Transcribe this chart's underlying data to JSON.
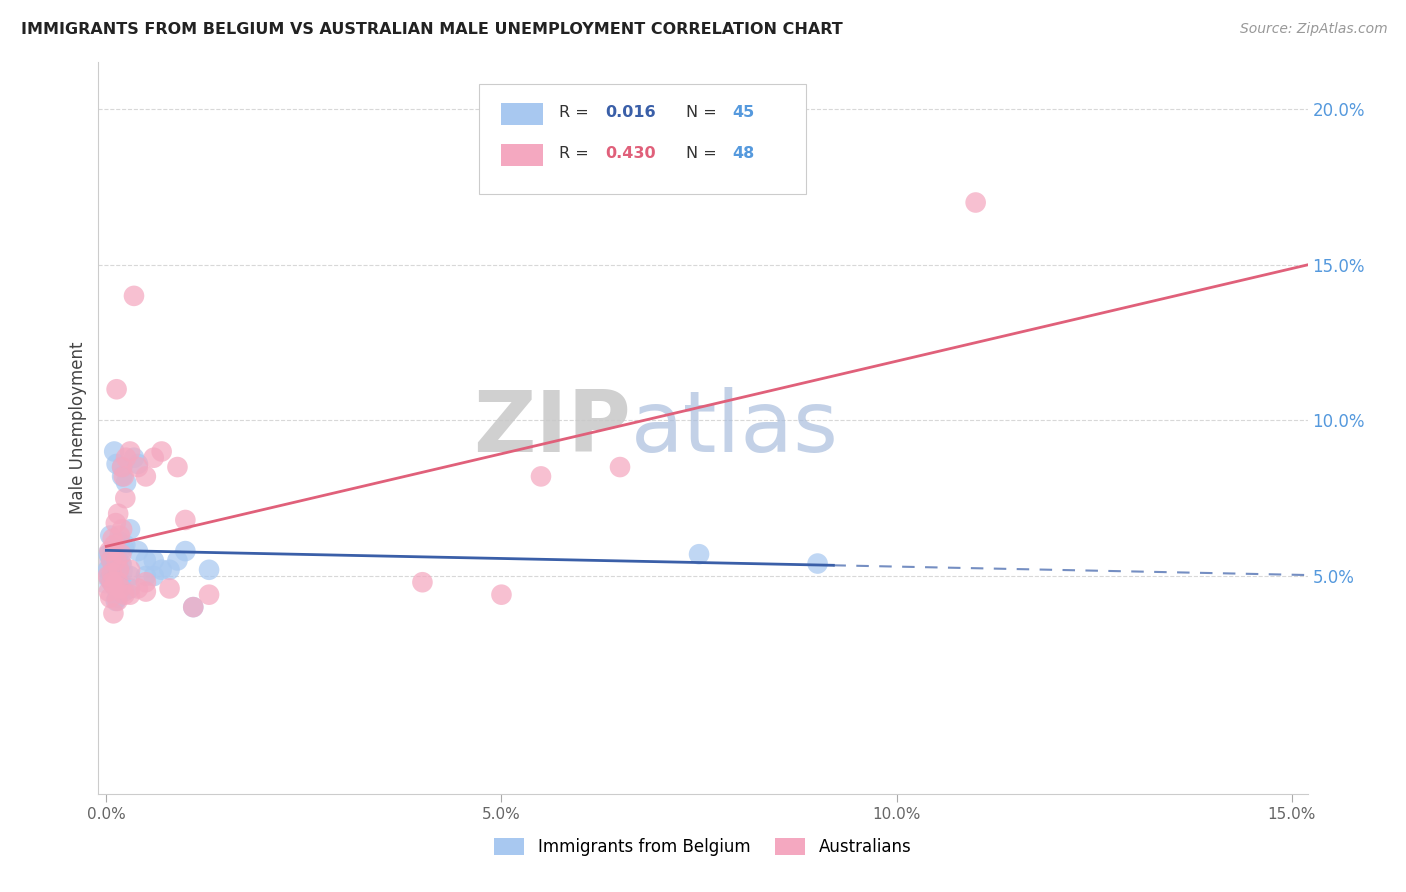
{
  "title": "IMMIGRANTS FROM BELGIUM VS AUSTRALIAN MALE UNEMPLOYMENT CORRELATION CHART",
  "source": "Source: ZipAtlas.com",
  "ylabel": "Male Unemployment",
  "watermark_zip": "ZIP",
  "watermark_atlas": "atlas",
  "xlim": [
    -0.001,
    0.152
  ],
  "ylim": [
    -0.02,
    0.215
  ],
  "xtick_vals": [
    0.0,
    0.05,
    0.1,
    0.15
  ],
  "xtick_labels": [
    "0.0%",
    "5.0%",
    "10.0%",
    "15.0%"
  ],
  "ytick_right_vals": [
    0.05,
    0.1,
    0.15,
    0.2
  ],
  "ytick_right_labels": [
    "5.0%",
    "10.0%",
    "15.0%",
    "20.0%"
  ],
  "series1_label": "Immigrants from Belgium",
  "series2_label": "Australians",
  "series1_color": "#a8c8f0",
  "series2_color": "#f4a8c0",
  "series1_R": "0.016",
  "series1_N": "45",
  "series2_R": "0.430",
  "series2_N": "48",
  "series1_line_color": "#3a5fa8",
  "series2_line_color": "#e0607a",
  "series1_dash_color": "#8899cc",
  "background_color": "#ffffff",
  "grid_color": "#d8d8d8",
  "s1_x": [
    0.0002,
    0.0003,
    0.0004,
    0.0005,
    0.0006,
    0.0007,
    0.0007,
    0.0008,
    0.0009,
    0.001,
    0.001,
    0.0012,
    0.0013,
    0.0013,
    0.0014,
    0.0015,
    0.0015,
    0.0016,
    0.0017,
    0.0018,
    0.0019,
    0.002,
    0.002,
    0.0022,
    0.0023,
    0.0024,
    0.0025,
    0.003,
    0.003,
    0.003,
    0.0035,
    0.004,
    0.004,
    0.005,
    0.005,
    0.006,
    0.006,
    0.007,
    0.008,
    0.009,
    0.01,
    0.011,
    0.013,
    0.075,
    0.09
  ],
  "s1_y": [
    0.052,
    0.057,
    0.049,
    0.063,
    0.055,
    0.05,
    0.048,
    0.058,
    0.053,
    0.047,
    0.09,
    0.042,
    0.058,
    0.086,
    0.043,
    0.05,
    0.055,
    0.052,
    0.061,
    0.048,
    0.054,
    0.082,
    0.085,
    0.059,
    0.045,
    0.06,
    0.08,
    0.046,
    0.05,
    0.065,
    0.088,
    0.086,
    0.058,
    0.055,
    0.05,
    0.055,
    0.05,
    0.052,
    0.052,
    0.055,
    0.058,
    0.04,
    0.052,
    0.057,
    0.054
  ],
  "s2_x": [
    0.0002,
    0.0003,
    0.0004,
    0.0005,
    0.0006,
    0.0007,
    0.0007,
    0.0008,
    0.0009,
    0.001,
    0.001,
    0.0012,
    0.0013,
    0.0013,
    0.0014,
    0.0015,
    0.0015,
    0.0016,
    0.0017,
    0.0018,
    0.0019,
    0.002,
    0.002,
    0.0022,
    0.0023,
    0.0024,
    0.0025,
    0.003,
    0.003,
    0.003,
    0.0035,
    0.004,
    0.004,
    0.005,
    0.005,
    0.005,
    0.006,
    0.007,
    0.008,
    0.009,
    0.01,
    0.011,
    0.013,
    0.04,
    0.05,
    0.055,
    0.065,
    0.11
  ],
  "s2_y": [
    0.05,
    0.045,
    0.058,
    0.043,
    0.055,
    0.051,
    0.048,
    0.062,
    0.038,
    0.06,
    0.047,
    0.067,
    0.055,
    0.11,
    0.042,
    0.048,
    0.07,
    0.052,
    0.063,
    0.046,
    0.057,
    0.085,
    0.065,
    0.082,
    0.044,
    0.075,
    0.088,
    0.044,
    0.052,
    0.09,
    0.14,
    0.085,
    0.046,
    0.082,
    0.045,
    0.048,
    0.088,
    0.09,
    0.046,
    0.085,
    0.068,
    0.04,
    0.044,
    0.048,
    0.044,
    0.082,
    0.085,
    0.17
  ]
}
